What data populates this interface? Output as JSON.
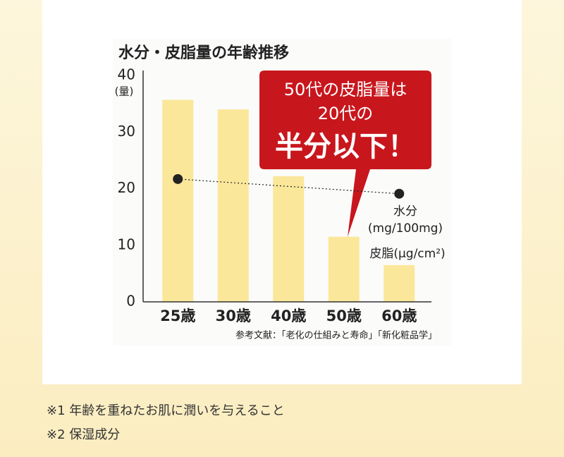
{
  "chart_data": {
    "type": "bar",
    "title": "水分・皮脂量の年齢推移",
    "ylabel": "(量)",
    "categories": [
      "25歳",
      "30歳",
      "40歳",
      "50歳",
      "60歳"
    ],
    "series": [
      {
        "name": "皮脂(μg/cm²)",
        "color": "#fbe79a",
        "values": [
          35.7,
          34,
          22.2,
          11.5,
          6.5
        ]
      },
      {
        "name": "水分",
        "unit": "(mg/100mg)",
        "color": "#222222",
        "values": [
          21.7,
          null,
          null,
          null,
          19.1
        ]
      }
    ],
    "ylim": [
      0,
      40
    ],
    "yticks": [
      0,
      10,
      20,
      30,
      40
    ],
    "annotations": [
      "50代の皮脂量は",
      "20代の",
      "半分以下！"
    ],
    "source": "参考文献：「老化の仕組みと寿命」「新化粧品学」"
  },
  "notes": [
    "※1 年齢を重ねたお肌に潤いを与えること",
    "※2 保湿成分"
  ]
}
